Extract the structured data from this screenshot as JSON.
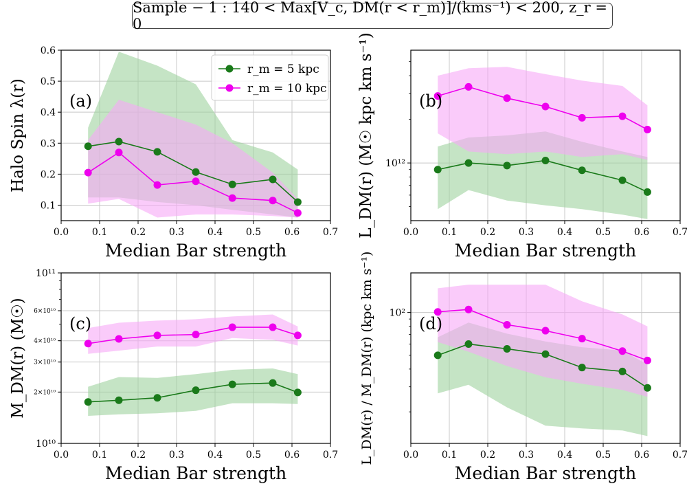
{
  "figure_title": "Sample − 1 : 140 < Max[V_c, DM(r < r_m)]/(kms⁻¹) < 200,  z_r = 0",
  "colors": {
    "rm5": "#1a7a1a",
    "rm5_band": "#9fd29f",
    "rm10": "#ee00ee",
    "rm10_band": "#f7a8f7"
  },
  "chart_data": [
    {
      "id": "a",
      "type": "line",
      "panel_label": "(a)",
      "xlabel": "Median Bar strength",
      "ylabel": "Halo Spin λ(r)",
      "xlim": [
        0,
        0.7
      ],
      "ylim": [
        0.05,
        0.6
      ],
      "yscale": "linear",
      "xticks": [
        "0.0",
        "0.1",
        "0.2",
        "0.3",
        "0.4",
        "0.5",
        "0.6",
        "0.7"
      ],
      "yticks": [
        {
          "v": 0.1,
          "t": "0.1"
        },
        {
          "v": 0.2,
          "t": "0.2"
        },
        {
          "v": 0.3,
          "t": "0.3"
        },
        {
          "v": 0.4,
          "t": "0.4"
        },
        {
          "v": 0.5,
          "t": "0.5"
        },
        {
          "v": 0.6,
          "t": "0.6"
        }
      ],
      "x": [
        0.07,
        0.15,
        0.25,
        0.35,
        0.445,
        0.55,
        0.615
      ],
      "legend": {
        "location": "upper-right",
        "entries": [
          "r_m = 5 kpc",
          "r_m = 10 kpc"
        ]
      },
      "series": [
        {
          "name": "r_m = 5 kpc",
          "values": [
            0.29,
            0.305,
            0.272,
            0.207,
            0.167,
            0.183,
            0.11
          ],
          "band_low": [
            0.125,
            0.125,
            0.11,
            0.1,
            0.085,
            0.07,
            0.06
          ],
          "band_high": [
            0.35,
            0.595,
            0.55,
            0.49,
            0.31,
            0.27,
            0.215
          ]
        },
        {
          "name": "r_m = 10 kpc",
          "values": [
            0.205,
            0.27,
            0.165,
            0.177,
            0.123,
            0.115,
            0.075
          ],
          "band_low": [
            0.105,
            0.12,
            0.06,
            0.07,
            0.07,
            0.065,
            0.06
          ],
          "band_high": [
            0.31,
            0.44,
            0.4,
            0.36,
            0.3,
            0.205,
            0.12
          ]
        }
      ]
    },
    {
      "id": "b",
      "type": "line",
      "panel_label": "(b)",
      "xlabel": "Median Bar strength",
      "ylabel": "L_DM(r)  (M☉ kpc km s⁻¹)",
      "xlim": [
        0,
        0.7
      ],
      "ylim": [
        400000000000.0,
        6000000000000.0
      ],
      "yscale": "log",
      "xticks": [
        "0.0",
        "0.1",
        "0.2",
        "0.3",
        "0.4",
        "0.5",
        "0.6",
        "0.7"
      ],
      "yticks": [
        {
          "v": 1000000000000.0,
          "t": "10¹²"
        }
      ],
      "x": [
        0.07,
        0.15,
        0.25,
        0.35,
        0.445,
        0.55,
        0.615
      ],
      "series": [
        {
          "name": "r_m = 5 kpc",
          "values": [
            900000000000.0,
            1000000000000.0,
            960000000000.0,
            1040000000000.0,
            890000000000.0,
            760000000000.0,
            630000000000.0
          ],
          "band_low": [
            480000000000.0,
            650000000000.0,
            550000000000.0,
            510000000000.0,
            480000000000.0,
            440000000000.0,
            410000000000.0
          ],
          "band_high": [
            1300000000000.0,
            1500000000000.0,
            1550000000000.0,
            1650000000000.0,
            1400000000000.0,
            1200000000000.0,
            1100000000000.0
          ]
        },
        {
          "name": "r_m = 10 kpc",
          "values": [
            2900000000000.0,
            3350000000000.0,
            2800000000000.0,
            2450000000000.0,
            2050000000000.0,
            2100000000000.0,
            1700000000000.0
          ],
          "band_low": [
            1600000000000.0,
            1200000000000.0,
            1150000000000.0,
            1200000000000.0,
            1100000000000.0,
            1150000000000.0,
            1050000000000.0
          ],
          "band_high": [
            4000000000000.0,
            4500000000000.0,
            4600000000000.0,
            4100000000000.0,
            3700000000000.0,
            3400000000000.0,
            2500000000000.0
          ]
        }
      ]
    },
    {
      "id": "c",
      "type": "line",
      "panel_label": "(c)",
      "xlabel": "Median Bar strength",
      "ylabel": "M_DM(r)  (M☉)",
      "xlim": [
        0,
        0.7
      ],
      "ylim": [
        10000000000.0,
        100000000000.0
      ],
      "yscale": "log",
      "xticks": [
        "0.0",
        "0.1",
        "0.2",
        "0.3",
        "0.4",
        "0.5",
        "0.6",
        "0.7"
      ],
      "yticks": [
        {
          "v": 10000000000.0,
          "t": "10¹⁰"
        },
        {
          "v": 20000000000.0,
          "t": "2×10¹⁰"
        },
        {
          "v": 30000000000.0,
          "t": "3×10¹⁰"
        },
        {
          "v": 40000000000.0,
          "t": "4×10¹⁰"
        },
        {
          "v": 60000000000.0,
          "t": "6×10¹⁰"
        },
        {
          "v": 100000000000.0,
          "t": "10¹¹"
        }
      ],
      "x": [
        0.07,
        0.15,
        0.25,
        0.35,
        0.445,
        0.55,
        0.615
      ],
      "series": [
        {
          "name": "r_m = 5 kpc",
          "values": [
            17500000000.0,
            17900000000.0,
            18500000000.0,
            20500000000.0,
            22200000000.0,
            22600000000.0,
            19900000000.0
          ],
          "band_low": [
            14500000000.0,
            14800000000.0,
            15000000000.0,
            15500000000.0,
            17200000000.0,
            17200000000.0,
            17000000000.0
          ],
          "band_high": [
            21500000000.0,
            24500000000.0,
            24200000000.0,
            25500000000.0,
            27000000000.0,
            27500000000.0,
            25500000000.0
          ]
        },
        {
          "name": "r_m = 10 kpc",
          "values": [
            38500000000.0,
            41000000000.0,
            43000000000.0,
            43500000000.0,
            48000000000.0,
            48000000000.0,
            43000000000.0
          ],
          "band_low": [
            33500000000.0,
            35000000000.0,
            37000000000.0,
            37000000000.0,
            41500000000.0,
            40500000000.0,
            37500000000.0
          ],
          "band_high": [
            47500000000.0,
            51000000000.0,
            52500000000.0,
            53500000000.0,
            55500000000.0,
            57000000000.0,
            48500000000.0
          ]
        }
      ]
    },
    {
      "id": "d",
      "type": "line",
      "panel_label": "(d)",
      "xlabel": "Median Bar strength",
      "ylabel": "L_DM(r) / M_DM(r)  (kpc km s⁻¹)",
      "xlim": [
        0,
        0.7
      ],
      "ylim": [
        12,
        190
      ],
      "yscale": "log",
      "xticks": [
        "0.0",
        "0.1",
        "0.2",
        "0.3",
        "0.4",
        "0.5",
        "0.6",
        "0.7"
      ],
      "yticks": [
        {
          "v": 100,
          "t": "10²"
        }
      ],
      "x": [
        0.07,
        0.15,
        0.25,
        0.35,
        0.445,
        0.55,
        0.615
      ],
      "series": [
        {
          "name": "r_m = 5 kpc",
          "values": [
            50,
            60,
            55.5,
            51,
            41,
            38.5,
            29.5
          ],
          "band_low": [
            27,
            31,
            21.5,
            16,
            15.3,
            14.8,
            13.5
          ],
          "band_high": [
            67,
            85,
            71,
            62.5,
            57,
            54,
            43
          ]
        },
        {
          "name": "r_m = 10 kpc",
          "values": [
            101,
            105,
            82,
            74.5,
            65.5,
            53.5,
            46
          ],
          "band_low": [
            62,
            53,
            42,
            35,
            31.5,
            28.5,
            25.5
          ],
          "band_high": [
            148,
            157,
            157,
            157,
            120,
            97,
            80
          ]
        }
      ]
    }
  ]
}
